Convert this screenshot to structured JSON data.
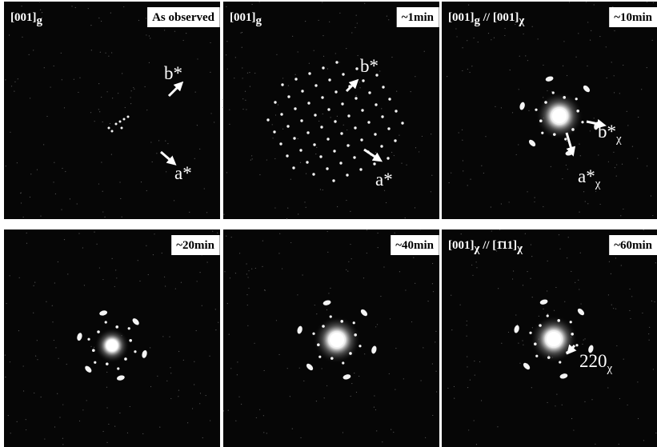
{
  "panels": [
    {
      "zone": [
        {
          "text": "[001]",
          "sub": "g"
        }
      ],
      "time": "As observed",
      "annotations": [
        {
          "text": "b*"
        },
        {
          "text": "a*"
        }
      ]
    },
    {
      "zone": [
        {
          "text": "[001]",
          "sub": "g"
        }
      ],
      "time": "~1min",
      "annotations": [
        {
          "text": "b*"
        },
        {
          "text": "a*"
        }
      ]
    },
    {
      "zone": [
        {
          "text": "[001]",
          "sub": "g"
        },
        {
          "text": " // [001]",
          "sub": "χ"
        }
      ],
      "time": "~10min",
      "annotations": [
        {
          "text": "b*",
          "sub": "χ"
        },
        {
          "text": "a*",
          "sub": "χ"
        }
      ]
    },
    {
      "time": "~20min"
    },
    {
      "time": "~40min"
    },
    {
      "zone": [
        {
          "text": "[001]",
          "sub": "χ"
        },
        {
          "text": " // [1̄11]",
          "sub": "χ"
        }
      ],
      "time": "~60min",
      "annotations": [
        {
          "text": "220",
          "sub": "χ"
        }
      ]
    }
  ]
}
